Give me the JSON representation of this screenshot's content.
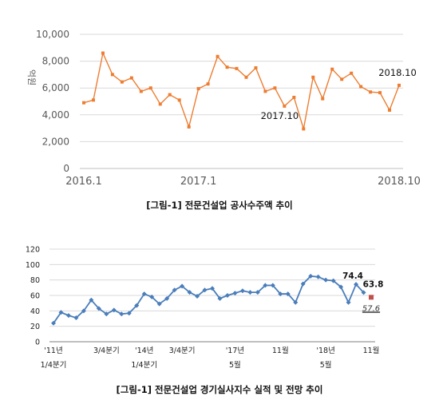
{
  "chart_data": [
    {
      "type": "line",
      "title": "",
      "ylabel": "억원",
      "xlabel": "",
      "ylim": [
        0,
        10000
      ],
      "yticks": [
        "0",
        "2,000",
        "4,000",
        "6,000",
        "8,000",
        "10,000"
      ],
      "x_tick_labels": [
        "2016.1",
        "2017.1",
        "2018.10"
      ],
      "grid": true,
      "line_color": "#ed7d31",
      "x": [
        "2016.1",
        "2016.2",
        "2016.3",
        "2016.4",
        "2016.5",
        "2016.6",
        "2016.7",
        "2016.8",
        "2016.9",
        "2016.10",
        "2016.11",
        "2016.12",
        "2017.1",
        "2017.2",
        "2017.3",
        "2017.4",
        "2017.5",
        "2017.6",
        "2017.7",
        "2017.8",
        "2017.9",
        "2017.10",
        "2017.11",
        "2017.12",
        "2018.1",
        "2018.2",
        "2018.3",
        "2018.4",
        "2018.5",
        "2018.6",
        "2018.7",
        "2018.8",
        "2018.9",
        "2018.10"
      ],
      "values": [
        4900,
        5100,
        8600,
        7000,
        6450,
        6750,
        5750,
        6000,
        4800,
        5500,
        5100,
        3100,
        5950,
        6300,
        8350,
        7550,
        7450,
        6800,
        7500,
        5750,
        6000,
        4650,
        5300,
        2950,
        6800,
        5200,
        7400,
        6650,
        7100,
        6100,
        5700,
        5650,
        4350,
        6200
      ],
      "annotations": [
        {
          "text": "2017.10",
          "index": 21
        },
        {
          "text": "2018.10",
          "index": 33
        }
      ]
    },
    {
      "type": "line",
      "title": "",
      "ylabel": "",
      "ylim": [
        0,
        120
      ],
      "yticks": [
        "0",
        "20",
        "40",
        "60",
        "80",
        "100",
        "120"
      ],
      "grid": true,
      "line_color": "#4a7ebb",
      "x_tick_labels": [
        {
          "line1": "'11년",
          "line2": "1/4분기",
          "index": 0
        },
        {
          "line1": "3/4분기",
          "line2": "",
          "index": 7
        },
        {
          "line1": "'14년",
          "line2": "1/4분기",
          "index": 12
        },
        {
          "line1": "3/4분기",
          "line2": "",
          "index": 17
        },
        {
          "line1": "'17년",
          "line2": "5월",
          "index": 24
        },
        {
          "line1": "11월",
          "line2": "",
          "index": 30
        },
        {
          "line1": "'18년",
          "line2": "5월",
          "index": 36
        },
        {
          "line1": "11월",
          "line2": "",
          "index": 42
        }
      ],
      "values": [
        24,
        38,
        34,
        31,
        40,
        54,
        43,
        36,
        41,
        36,
        37,
        47,
        62,
        58,
        49,
        56,
        67,
        72,
        64,
        59,
        67,
        69,
        56,
        60,
        63,
        66,
        64,
        64,
        73,
        73,
        62,
        62,
        51,
        75,
        85,
        84,
        80,
        79,
        71,
        51,
        74.4,
        63.8
      ],
      "forecast": {
        "index": 42,
        "value": 57.6,
        "label": "57.6",
        "color": "#c0504d"
      },
      "annotations": [
        {
          "text": "74.4",
          "index": 40
        },
        {
          "text": "63.8",
          "index": 41
        }
      ]
    }
  ],
  "captions": {
    "chart1": "[그림-1]  전문건설업 공사수주액 추이",
    "chart2": "[그림-1]  전문건설업 경기실사지수 실적 및 전망 추이"
  }
}
